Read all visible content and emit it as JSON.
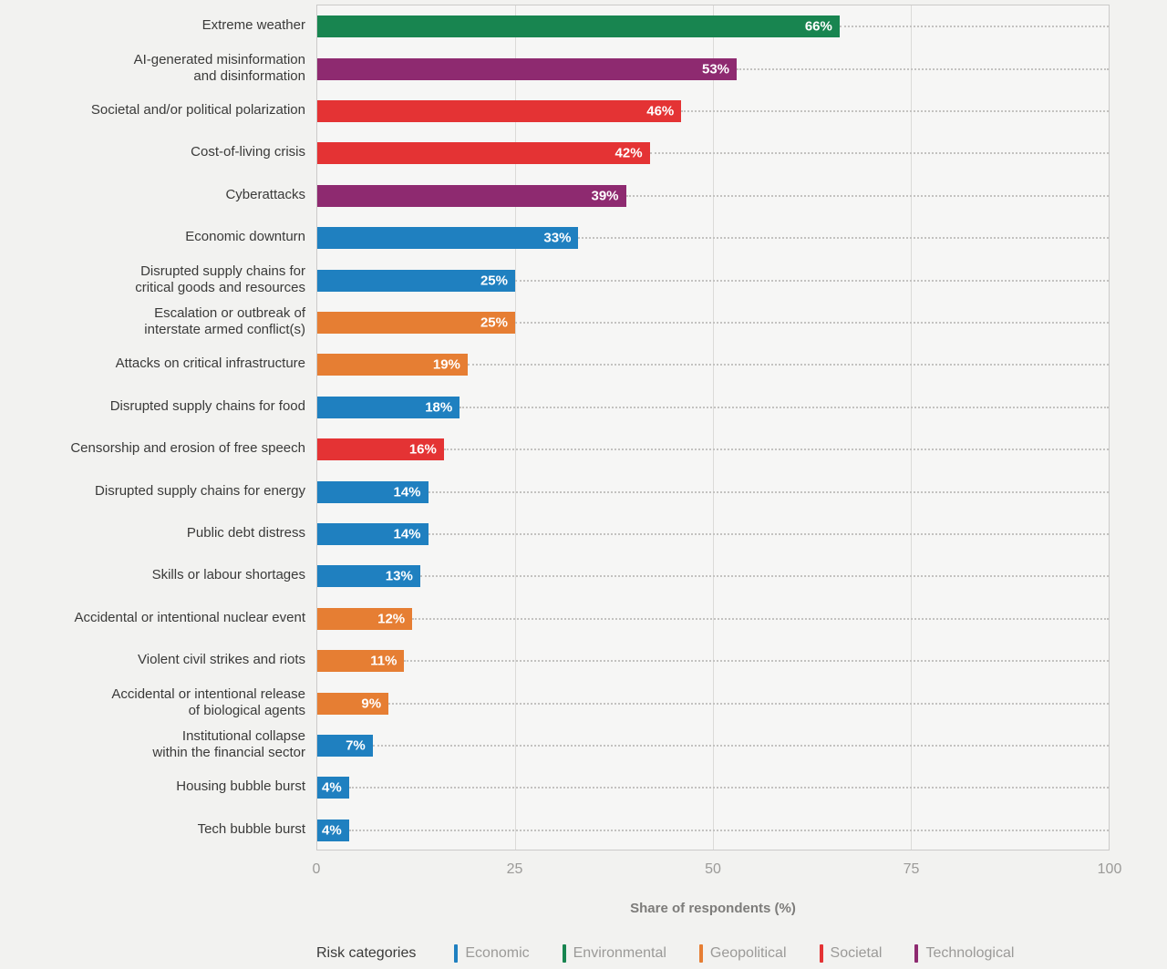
{
  "chart_data": {
    "type": "bar",
    "orientation": "horizontal",
    "xlabel": "Share of respondents (%)",
    "xlim": [
      0,
      100
    ],
    "xticks": [
      0,
      25,
      50,
      75,
      100
    ],
    "xtick_labels": [
      "0",
      "25",
      "50",
      "75",
      "100"
    ],
    "grid": "vertical-solid, dotted leader lines per bar",
    "categories": [
      "Extreme weather",
      "AI-generated misinformation\nand disinformation",
      "Societal and/or political polarization",
      "Cost-of-living crisis",
      "Cyberattacks",
      "Economic downturn",
      "Disrupted supply chains for\ncritical goods and resources",
      "Escalation or outbreak of\ninterstate armed conflict(s)",
      "Attacks on critical infrastructure",
      "Disrupted supply chains for food",
      "Censorship and erosion of free speech",
      "Disrupted supply chains for energy",
      "Public debt distress",
      "Skills or labour shortages",
      "Accidental or intentional nuclear event",
      "Violent civil strikes and riots",
      "Accidental or intentional release\nof biological agents",
      "Institutional collapse\nwithin the financial sector",
      "Housing bubble burst",
      "Tech bubble burst"
    ],
    "values": [
      66,
      53,
      46,
      42,
      39,
      33,
      25,
      25,
      19,
      18,
      16,
      14,
      14,
      13,
      12,
      11,
      9,
      7,
      4,
      4
    ],
    "value_labels": [
      "66%",
      "53%",
      "46%",
      "42%",
      "39%",
      "33%",
      "25%",
      "25%",
      "19%",
      "18%",
      "16%",
      "14%",
      "14%",
      "13%",
      "12%",
      "11%",
      "9%",
      "7%",
      "4%",
      "4%"
    ],
    "bar_risk_categories": [
      "Environmental",
      "Technological",
      "Societal",
      "Societal",
      "Technological",
      "Economic",
      "Economic",
      "Geopolitical",
      "Geopolitical",
      "Economic",
      "Societal",
      "Economic",
      "Economic",
      "Economic",
      "Geopolitical",
      "Geopolitical",
      "Geopolitical",
      "Economic",
      "Economic",
      "Economic"
    ],
    "category_colors": {
      "Economic": "#1f80c0",
      "Environmental": "#188550",
      "Geopolitical": "#e67e33",
      "Societal": "#e43334",
      "Technological": "#8e2a70"
    }
  },
  "legend": {
    "title": "Risk categories",
    "items": [
      {
        "label": "Economic",
        "color": "#1f80c0"
      },
      {
        "label": "Environmental",
        "color": "#188550"
      },
      {
        "label": "Geopolitical",
        "color": "#e67e33"
      },
      {
        "label": "Societal",
        "color": "#e43334"
      },
      {
        "label": "Technological",
        "color": "#8e2a70"
      }
    ]
  }
}
